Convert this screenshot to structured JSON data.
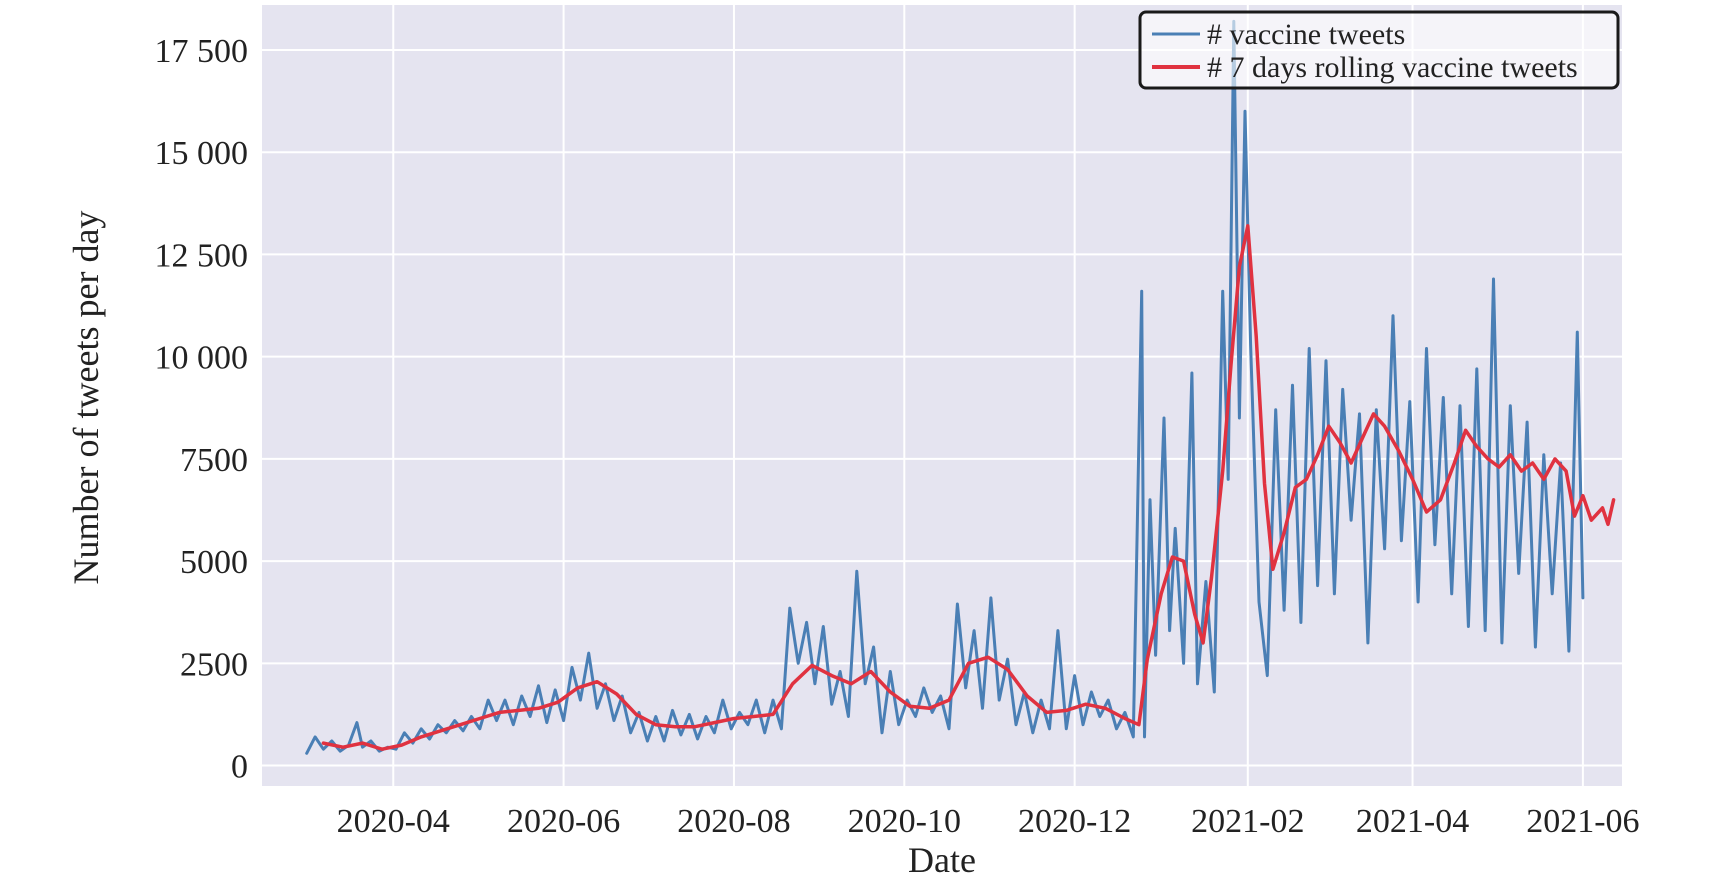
{
  "colors": {
    "plot_background": "#e5e4f0",
    "grid": "#ffffff",
    "daily_series": "#4a7fb5",
    "rolling_series": "#e03240",
    "legend_border": "#1a1a1a"
  },
  "chart_data": {
    "type": "line",
    "xlabel": "Date",
    "ylabel": "Number of tweets per day",
    "x_range": [
      "2020-02-14",
      "2021-06-15"
    ],
    "ylim": [
      -500,
      18600
    ],
    "grid": true,
    "legend_position": "top-right",
    "x_ticks": [
      {
        "date": "2020-04-01",
        "label": "2020-04"
      },
      {
        "date": "2020-06-01",
        "label": "2020-06"
      },
      {
        "date": "2020-08-01",
        "label": "2020-08"
      },
      {
        "date": "2020-10-01",
        "label": "2020-10"
      },
      {
        "date": "2020-12-01",
        "label": "2020-12"
      },
      {
        "date": "2021-02-01",
        "label": "2021-02"
      },
      {
        "date": "2021-04-01",
        "label": "2021-04"
      },
      {
        "date": "2021-06-01",
        "label": "2021-06"
      }
    ],
    "y_ticks": [
      {
        "value": 0,
        "label": "0"
      },
      {
        "value": 2500,
        "label": "2500"
      },
      {
        "value": 5000,
        "label": "5000"
      },
      {
        "value": 7500,
        "label": "7500"
      },
      {
        "value": 10000,
        "label": "10 000"
      },
      {
        "value": 12500,
        "label": "12 500"
      },
      {
        "value": 15000,
        "label": "15 000"
      },
      {
        "value": 17500,
        "label": "17 500"
      }
    ],
    "series": [
      {
        "name": "# vaccine tweets",
        "color": "#4a7fb5",
        "points": [
          [
            "2020-03-01",
            300
          ],
          [
            "2020-03-04",
            700
          ],
          [
            "2020-03-07",
            400
          ],
          [
            "2020-03-10",
            600
          ],
          [
            "2020-03-13",
            350
          ],
          [
            "2020-03-16",
            500
          ],
          [
            "2020-03-19",
            1050
          ],
          [
            "2020-03-21",
            450
          ],
          [
            "2020-03-24",
            600
          ],
          [
            "2020-03-27",
            350
          ],
          [
            "2020-03-30",
            450
          ],
          [
            "2020-04-02",
            400
          ],
          [
            "2020-04-05",
            800
          ],
          [
            "2020-04-08",
            550
          ],
          [
            "2020-04-11",
            900
          ],
          [
            "2020-04-14",
            650
          ],
          [
            "2020-04-17",
            1000
          ],
          [
            "2020-04-20",
            800
          ],
          [
            "2020-04-23",
            1100
          ],
          [
            "2020-04-26",
            850
          ],
          [
            "2020-04-29",
            1200
          ],
          [
            "2020-05-02",
            900
          ],
          [
            "2020-05-05",
            1600
          ],
          [
            "2020-05-08",
            1100
          ],
          [
            "2020-05-11",
            1600
          ],
          [
            "2020-05-14",
            1000
          ],
          [
            "2020-05-17",
            1700
          ],
          [
            "2020-05-20",
            1200
          ],
          [
            "2020-05-23",
            1950
          ],
          [
            "2020-05-26",
            1050
          ],
          [
            "2020-05-29",
            1850
          ],
          [
            "2020-06-01",
            1100
          ],
          [
            "2020-06-04",
            2400
          ],
          [
            "2020-06-07",
            1600
          ],
          [
            "2020-06-10",
            2750
          ],
          [
            "2020-06-13",
            1400
          ],
          [
            "2020-06-16",
            2000
          ],
          [
            "2020-06-19",
            1100
          ],
          [
            "2020-06-22",
            1700
          ],
          [
            "2020-06-25",
            800
          ],
          [
            "2020-06-28",
            1300
          ],
          [
            "2020-07-01",
            600
          ],
          [
            "2020-07-04",
            1200
          ],
          [
            "2020-07-07",
            600
          ],
          [
            "2020-07-10",
            1350
          ],
          [
            "2020-07-13",
            750
          ],
          [
            "2020-07-16",
            1250
          ],
          [
            "2020-07-19",
            650
          ],
          [
            "2020-07-22",
            1200
          ],
          [
            "2020-07-25",
            800
          ],
          [
            "2020-07-28",
            1600
          ],
          [
            "2020-07-31",
            900
          ],
          [
            "2020-08-03",
            1300
          ],
          [
            "2020-08-06",
            1000
          ],
          [
            "2020-08-09",
            1600
          ],
          [
            "2020-08-12",
            800
          ],
          [
            "2020-08-15",
            1600
          ],
          [
            "2020-08-18",
            900
          ],
          [
            "2020-08-21",
            3850
          ],
          [
            "2020-08-24",
            2500
          ],
          [
            "2020-08-27",
            3500
          ],
          [
            "2020-08-30",
            2000
          ],
          [
            "2020-09-02",
            3400
          ],
          [
            "2020-09-05",
            1500
          ],
          [
            "2020-09-08",
            2300
          ],
          [
            "2020-09-11",
            1200
          ],
          [
            "2020-09-14",
            4750
          ],
          [
            "2020-09-17",
            2000
          ],
          [
            "2020-09-20",
            2900
          ],
          [
            "2020-09-23",
            800
          ],
          [
            "2020-09-26",
            2300
          ],
          [
            "2020-09-29",
            1000
          ],
          [
            "2020-10-02",
            1600
          ],
          [
            "2020-10-05",
            1200
          ],
          [
            "2020-10-08",
            1900
          ],
          [
            "2020-10-11",
            1300
          ],
          [
            "2020-10-14",
            1700
          ],
          [
            "2020-10-17",
            900
          ],
          [
            "2020-10-20",
            3950
          ],
          [
            "2020-10-23",
            1900
          ],
          [
            "2020-10-26",
            3300
          ],
          [
            "2020-10-29",
            1400
          ],
          [
            "2020-11-01",
            4100
          ],
          [
            "2020-11-04",
            1600
          ],
          [
            "2020-11-07",
            2600
          ],
          [
            "2020-11-10",
            1000
          ],
          [
            "2020-11-13",
            1800
          ],
          [
            "2020-11-16",
            800
          ],
          [
            "2020-11-19",
            1600
          ],
          [
            "2020-11-22",
            900
          ],
          [
            "2020-11-25",
            3300
          ],
          [
            "2020-11-28",
            900
          ],
          [
            "2020-12-01",
            2200
          ],
          [
            "2020-12-04",
            1000
          ],
          [
            "2020-12-07",
            1800
          ],
          [
            "2020-12-10",
            1200
          ],
          [
            "2020-12-13",
            1600
          ],
          [
            "2020-12-16",
            900
          ],
          [
            "2020-12-19",
            1300
          ],
          [
            "2020-12-22",
            700
          ],
          [
            "2020-12-25",
            11600
          ],
          [
            "2020-12-26",
            700
          ],
          [
            "2020-12-28",
            6500
          ],
          [
            "2020-12-30",
            2700
          ],
          [
            "2021-01-02",
            8500
          ],
          [
            "2021-01-04",
            3300
          ],
          [
            "2021-01-06",
            5800
          ],
          [
            "2021-01-09",
            2500
          ],
          [
            "2021-01-12",
            9600
          ],
          [
            "2021-01-14",
            2000
          ],
          [
            "2021-01-17",
            4500
          ],
          [
            "2021-01-20",
            1800
          ],
          [
            "2021-01-23",
            11600
          ],
          [
            "2021-01-25",
            7000
          ],
          [
            "2021-01-27",
            18200
          ],
          [
            "2021-01-29",
            8500
          ],
          [
            "2021-01-31",
            16000
          ],
          [
            "2021-02-02",
            10300
          ],
          [
            "2021-02-05",
            4000
          ],
          [
            "2021-02-08",
            2200
          ],
          [
            "2021-02-11",
            8700
          ],
          [
            "2021-02-14",
            3800
          ],
          [
            "2021-02-17",
            9300
          ],
          [
            "2021-02-20",
            3500
          ],
          [
            "2021-02-23",
            10200
          ],
          [
            "2021-02-26",
            4400
          ],
          [
            "2021-03-01",
            9900
          ],
          [
            "2021-03-04",
            4200
          ],
          [
            "2021-03-07",
            9200
          ],
          [
            "2021-03-10",
            6000
          ],
          [
            "2021-03-13",
            8600
          ],
          [
            "2021-03-16",
            3000
          ],
          [
            "2021-03-19",
            8700
          ],
          [
            "2021-03-22",
            5300
          ],
          [
            "2021-03-25",
            11000
          ],
          [
            "2021-03-28",
            5500
          ],
          [
            "2021-03-31",
            8900
          ],
          [
            "2021-04-03",
            4000
          ],
          [
            "2021-04-06",
            10200
          ],
          [
            "2021-04-09",
            5400
          ],
          [
            "2021-04-12",
            9000
          ],
          [
            "2021-04-15",
            4200
          ],
          [
            "2021-04-18",
            8800
          ],
          [
            "2021-04-21",
            3400
          ],
          [
            "2021-04-24",
            9700
          ],
          [
            "2021-04-27",
            3300
          ],
          [
            "2021-04-30",
            11900
          ],
          [
            "2021-05-03",
            3000
          ],
          [
            "2021-05-06",
            8800
          ],
          [
            "2021-05-09",
            4700
          ],
          [
            "2021-05-12",
            8400
          ],
          [
            "2021-05-15",
            2900
          ],
          [
            "2021-05-18",
            7600
          ],
          [
            "2021-05-21",
            4200
          ],
          [
            "2021-05-24",
            7400
          ],
          [
            "2021-05-27",
            2800
          ],
          [
            "2021-05-30",
            10600
          ],
          [
            "2021-06-01",
            4100
          ]
        ]
      },
      {
        "name": "# 7 days rolling vaccine tweets",
        "color": "#e03240",
        "points": [
          [
            "2020-03-07",
            550
          ],
          [
            "2020-03-14",
            450
          ],
          [
            "2020-03-21",
            550
          ],
          [
            "2020-03-28",
            400
          ],
          [
            "2020-04-04",
            500
          ],
          [
            "2020-04-11",
            700
          ],
          [
            "2020-04-18",
            850
          ],
          [
            "2020-04-25",
            1000
          ],
          [
            "2020-05-02",
            1150
          ],
          [
            "2020-05-09",
            1300
          ],
          [
            "2020-05-16",
            1350
          ],
          [
            "2020-05-23",
            1400
          ],
          [
            "2020-05-30",
            1550
          ],
          [
            "2020-06-06",
            1900
          ],
          [
            "2020-06-13",
            2050
          ],
          [
            "2020-06-20",
            1750
          ],
          [
            "2020-06-27",
            1250
          ],
          [
            "2020-07-04",
            1000
          ],
          [
            "2020-07-11",
            950
          ],
          [
            "2020-07-18",
            950
          ],
          [
            "2020-07-25",
            1050
          ],
          [
            "2020-08-01",
            1150
          ],
          [
            "2020-08-08",
            1200
          ],
          [
            "2020-08-15",
            1250
          ],
          [
            "2020-08-22",
            2000
          ],
          [
            "2020-08-29",
            2450
          ],
          [
            "2020-09-05",
            2200
          ],
          [
            "2020-09-12",
            2000
          ],
          [
            "2020-09-19",
            2300
          ],
          [
            "2020-09-26",
            1800
          ],
          [
            "2020-10-03",
            1450
          ],
          [
            "2020-10-10",
            1400
          ],
          [
            "2020-10-17",
            1600
          ],
          [
            "2020-10-24",
            2500
          ],
          [
            "2020-10-31",
            2650
          ],
          [
            "2020-11-07",
            2350
          ],
          [
            "2020-11-14",
            1700
          ],
          [
            "2020-11-21",
            1300
          ],
          [
            "2020-11-28",
            1350
          ],
          [
            "2020-12-05",
            1500
          ],
          [
            "2020-12-12",
            1400
          ],
          [
            "2020-12-19",
            1150
          ],
          [
            "2020-12-24",
            1000
          ],
          [
            "2020-12-27",
            2600
          ],
          [
            "2021-01-01",
            4200
          ],
          [
            "2021-01-05",
            5100
          ],
          [
            "2021-01-09",
            5000
          ],
          [
            "2021-01-13",
            3700
          ],
          [
            "2021-01-16",
            3000
          ],
          [
            "2021-01-19",
            4600
          ],
          [
            "2021-01-23",
            7200
          ],
          [
            "2021-01-26",
            9800
          ],
          [
            "2021-01-29",
            12200
          ],
          [
            "2021-02-01",
            13200
          ],
          [
            "2021-02-04",
            10500
          ],
          [
            "2021-02-07",
            6900
          ],
          [
            "2021-02-10",
            4800
          ],
          [
            "2021-02-14",
            5700
          ],
          [
            "2021-02-18",
            6800
          ],
          [
            "2021-02-22",
            7000
          ],
          [
            "2021-02-26",
            7600
          ],
          [
            "2021-03-02",
            8300
          ],
          [
            "2021-03-06",
            7900
          ],
          [
            "2021-03-10",
            7400
          ],
          [
            "2021-03-14",
            8000
          ],
          [
            "2021-03-18",
            8600
          ],
          [
            "2021-03-22",
            8300
          ],
          [
            "2021-03-27",
            7700
          ],
          [
            "2021-04-01",
            7000
          ],
          [
            "2021-04-06",
            6200
          ],
          [
            "2021-04-11",
            6500
          ],
          [
            "2021-04-16",
            7400
          ],
          [
            "2021-04-20",
            8200
          ],
          [
            "2021-04-24",
            7800
          ],
          [
            "2021-04-28",
            7500
          ],
          [
            "2021-05-02",
            7300
          ],
          [
            "2021-05-06",
            7600
          ],
          [
            "2021-05-10",
            7200
          ],
          [
            "2021-05-14",
            7400
          ],
          [
            "2021-05-18",
            7000
          ],
          [
            "2021-05-22",
            7500
          ],
          [
            "2021-05-26",
            7200
          ],
          [
            "2021-05-29",
            6100
          ],
          [
            "2021-06-01",
            6600
          ],
          [
            "2021-06-04",
            6000
          ],
          [
            "2021-06-08",
            6300
          ],
          [
            "2021-06-10",
            5900
          ],
          [
            "2021-06-12",
            6500
          ]
        ]
      }
    ]
  }
}
